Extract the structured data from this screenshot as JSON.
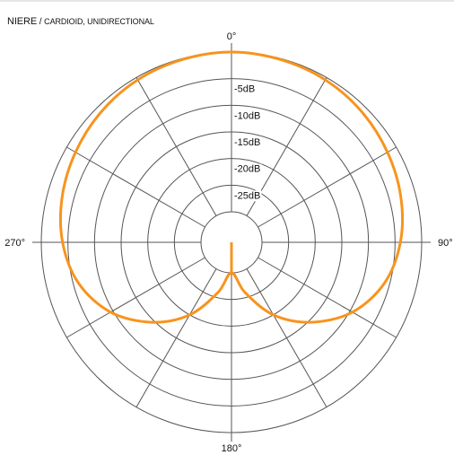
{
  "title": {
    "brand": "NIERE",
    "separator": " / ",
    "subtitle": "CARDIOID, UNIDIRECTIONAL"
  },
  "chart_data": {
    "type": "polar",
    "radial_labels": [
      "-5dB",
      "-10dB",
      "-15dB",
      "-20dB",
      "-25dB"
    ],
    "angle_labels": [
      "0°",
      "90°",
      "180°",
      "270°"
    ],
    "r_range_db": [
      -30,
      0
    ],
    "ring_step_db": 5,
    "spoke_step_deg": 30,
    "grid": true,
    "series": [
      {
        "color": "#f7941d",
        "points": [
          {
            "angle": 0,
            "db": 0
          },
          {
            "angle": 15,
            "db": -0.2
          },
          {
            "angle": 30,
            "db": -0.5
          },
          {
            "angle": 45,
            "db": -1.1
          },
          {
            "angle": 60,
            "db": -1.9
          },
          {
            "angle": 75,
            "db": -2.8
          },
          {
            "angle": 90,
            "db": -4.0
          },
          {
            "angle": 105,
            "db": -6.0
          },
          {
            "angle": 120,
            "db": -9.5
          },
          {
            "angle": 135,
            "db": -14.5
          },
          {
            "angle": 150,
            "db": -20.0
          },
          {
            "angle": 165,
            "db": -26.0
          },
          {
            "angle": 180,
            "db": -30.0
          },
          {
            "angle": 195,
            "db": -26.0
          },
          {
            "angle": 210,
            "db": -20.0
          },
          {
            "angle": 225,
            "db": -14.5
          },
          {
            "angle": 240,
            "db": -9.5
          },
          {
            "angle": 255,
            "db": -6.0
          },
          {
            "angle": 270,
            "db": -4.0
          },
          {
            "angle": 285,
            "db": -2.8
          },
          {
            "angle": 300,
            "db": -1.9
          },
          {
            "angle": 315,
            "db": -1.1
          },
          {
            "angle": 330,
            "db": -0.5
          },
          {
            "angle": 345,
            "db": -0.2
          }
        ]
      }
    ]
  },
  "colors": {
    "grid": "#555555",
    "curve": "#f7941d",
    "text": "#111111"
  }
}
